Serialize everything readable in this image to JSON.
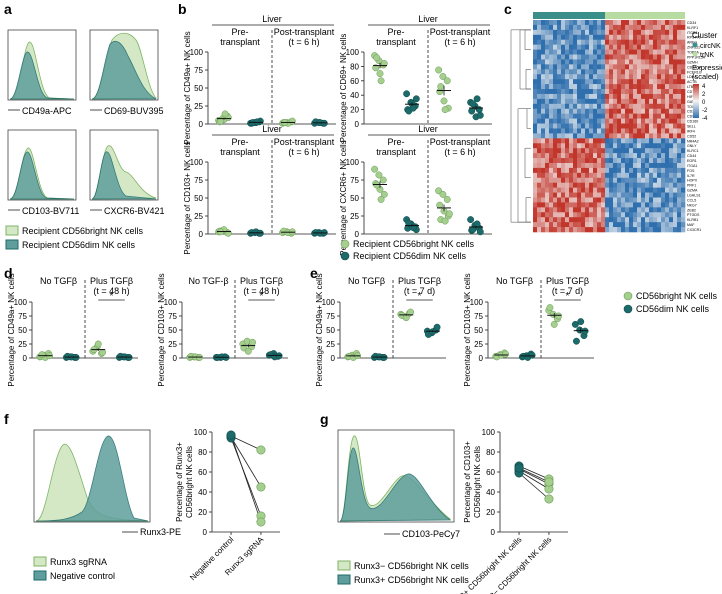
{
  "panels": {
    "a": "a",
    "b": "b",
    "c": "c",
    "d": "d",
    "e": "e",
    "f": "f",
    "g": "g"
  },
  "colors": {
    "light": "#a5cf8f",
    "dark": "#1c6b6a",
    "light_fill": "#d4e8c6",
    "dark_fill": "#5f9e9c"
  },
  "a": {
    "axes": [
      "CD49a-APC",
      "CD69-BUV395",
      "CD103-BV711",
      "CXCR6-BV421"
    ],
    "legend": [
      "Recipient CD56bright NK cells",
      "Recipient CD56dim NK cells"
    ]
  },
  "b": {
    "liver": "Liver",
    "pre": [
      "Pre-",
      "transplant"
    ],
    "post": [
      "Post-transplant",
      "(t = 6 h)"
    ],
    "plots": [
      {
        "ylabel": "Percentage of CD49a+ NK cells",
        "ticks": [
          "0",
          "25",
          "50",
          "75",
          "100"
        ],
        "max": 100,
        "pre_light": [
          5,
          8,
          11,
          3,
          6,
          9,
          4,
          14
        ],
        "pre_dark": [
          1,
          2,
          3,
          1,
          2,
          4,
          2,
          3
        ],
        "post_light": [
          1,
          2,
          3,
          2,
          1,
          4,
          2
        ],
        "post_dark": [
          1,
          2,
          1,
          3,
          2,
          1
        ]
      },
      {
        "ylabel": "Percentage of CD69+ NK cells",
        "ticks": [
          "0",
          "20",
          "40",
          "60",
          "80",
          "100"
        ],
        "max": 100,
        "pre_light": [
          95,
          88,
          82,
          78,
          70,
          84,
          92,
          60
        ],
        "pre_dark": [
          42,
          30,
          25,
          20,
          28,
          35,
          18,
          22
        ],
        "post_light": [
          75,
          66,
          60,
          45,
          32,
          22,
          52,
          20
        ],
        "post_dark": [
          30,
          25,
          20,
          18,
          10,
          12,
          28,
          35
        ]
      },
      {
        "ylabel": "Percentage of CD103+ NK cells",
        "ticks": [
          "0",
          "25",
          "50",
          "75",
          "100"
        ],
        "max": 100,
        "pre_light": [
          3,
          5,
          2,
          4,
          6,
          1,
          3
        ],
        "pre_dark": [
          1,
          2,
          1,
          2,
          3,
          1
        ],
        "post_light": [
          2,
          3,
          1,
          4,
          2,
          3
        ],
        "post_dark": [
          1,
          2,
          1,
          2,
          1,
          2
        ]
      },
      {
        "ylabel": "Percentage of CXCR6+ NK cells",
        "ticks": [
          "0",
          "25",
          "50",
          "75",
          "100"
        ],
        "max": 100,
        "pre_light": [
          90,
          82,
          75,
          70,
          62,
          55,
          68,
          48
        ],
        "pre_dark": [
          20,
          14,
          10,
          8,
          12,
          6,
          15,
          9
        ],
        "post_light": [
          60,
          55,
          48,
          40,
          32,
          25,
          20,
          18,
          28
        ],
        "post_dark": [
          20,
          12,
          8,
          5,
          10,
          3,
          6,
          14
        ]
      }
    ],
    "legend": [
      "Recipient CD56bright NK cells",
      "Recipient CD56dim NK cells"
    ]
  },
  "c": {
    "legend_title": "Cluster",
    "clusters": [
      "circNK",
      "trNK"
    ],
    "expr_title": [
      "Expression",
      "(scaled)"
    ],
    "expr_ticks": [
      "4",
      "2",
      "0",
      "-2",
      "-4"
    ],
    "genes": [
      "CD34",
      "KLRF1",
      "ITGB2",
      "RPS4Y1",
      "AREG",
      "ZNF331",
      "TOP2A",
      "PPP1R15A",
      "GZMH",
      "CDKN1A",
      "FCER1G",
      "LDHA",
      "ACTB",
      "LTB",
      "CD7",
      "HIF1A",
      "GATA3",
      "TOX",
      "CD3D",
      "CD96",
      "CD160",
      "SELL",
      "IRF4",
      "CD52",
      "NR4A2",
      "GNLY",
      "KLRC1",
      "CD44",
      "EGR1",
      "ITGA1",
      "FOS",
      "IL7R",
      "HOPX",
      "PRF1",
      "GZMA",
      "LGALS1",
      "CCL5",
      "NKG7",
      "ZEB2",
      "PTGDS",
      "KLRB1",
      "MAF",
      "CX3CR1"
    ]
  },
  "d": {
    "left": {
      "ylabel": "Percentage of CD49a+ NK cells",
      "cond1": "No TGFβ",
      "cond2": "Plus TGFβ",
      "time": "(t = 48 h)",
      "ticks": [
        "0",
        "25",
        "50",
        "75",
        "100"
      ],
      "no_light": [
        2,
        5,
        8,
        3,
        1,
        4,
        6
      ],
      "no_dark": [
        1,
        2,
        1,
        3,
        2,
        1
      ],
      "plus_light": [
        12,
        20,
        8,
        15,
        25,
        10
      ],
      "plus_dark": [
        1,
        2,
        1,
        3,
        2,
        1
      ]
    },
    "right": {
      "ylabel": "Percentage of CD103+ NK cells",
      "cond1": "No TGF-β",
      "cond2": "Plus TGFβ",
      "time": "(t = 48 h)",
      "ticks": [
        "0",
        "25",
        "50",
        "75",
        "100"
      ],
      "no_light": [
        1,
        2,
        1,
        3,
        2,
        1
      ],
      "no_dark": [
        1,
        1,
        2,
        1,
        2,
        1
      ],
      "plus_light": [
        25,
        30,
        20,
        18,
        12,
        28
      ],
      "plus_dark": [
        5,
        8,
        3,
        6,
        2,
        4
      ]
    },
    "sig": "*"
  },
  "e": {
    "left": {
      "ylabel": "Percentage of CD49a+ NK cells",
      "cond1": "No TGFβ",
      "cond2": "Plus TGFβ",
      "time": "(t = 7 d)",
      "ticks": [
        "0",
        "25",
        "50",
        "75",
        "100"
      ],
      "no_light": [
        2,
        5,
        8,
        3,
        1,
        4
      ],
      "no_dark": [
        1,
        2,
        1,
        3,
        2,
        1
      ],
      "plus_light": [
        78,
        74,
        80,
        76,
        72,
        82
      ],
      "plus_dark": [
        48,
        45,
        50,
        42,
        47,
        55
      ]
    },
    "right": {
      "ylabel": "Percentage of CD103+ NK cells",
      "cond1": "No TGFβ",
      "cond2": "Plus TGFβ",
      "time": "(t = 7 d)",
      "ticks": [
        "0",
        "25",
        "50",
        "75",
        "100"
      ],
      "no_light": [
        3,
        6,
        9,
        2,
        5,
        7
      ],
      "no_dark": [
        2,
        4,
        7,
        3,
        1,
        5
      ],
      "plus_light": [
        85,
        78,
        70,
        90,
        60,
        75
      ],
      "plus_dark": [
        60,
        50,
        40,
        30,
        65,
        48
      ]
    },
    "sig": "*",
    "legend": [
      "CD56bright NK cells",
      "CD56dim NK cells"
    ]
  },
  "f": {
    "axis": "Runx3-PE",
    "legend": [
      "Runx3 sgRNA",
      "Negative control"
    ],
    "ylabel": [
      "Percentage of Runx3+",
      "CD56bright NK cells"
    ],
    "ticks": [
      "0",
      "20",
      "40",
      "60",
      "80",
      "100"
    ],
    "xcats": [
      "Negative control",
      "Runx3 sgRNA"
    ],
    "pairs": [
      [
        96,
        82
      ],
      [
        95,
        45
      ],
      [
        94,
        16
      ],
      [
        97,
        10
      ]
    ]
  },
  "g": {
    "axis": "CD103-PeCy7",
    "legend": [
      "Runx3− CD56bright NK cells",
      "Runx3+ CD56bright NK cells"
    ],
    "ylabel": [
      "Percentage of CD103+",
      "CD56bright NK cells"
    ],
    "ticks": [
      "0",
      "20",
      "40",
      "60",
      "80",
      "100"
    ],
    "xcats": [
      "Runx3+ CD56bright NK cells",
      "Runx3− CD56bright NK cells"
    ],
    "pairs": [
      [
        66,
        53
      ],
      [
        63,
        48
      ],
      [
        61,
        43
      ],
      [
        59,
        33
      ],
      [
        64,
        50
      ]
    ]
  }
}
